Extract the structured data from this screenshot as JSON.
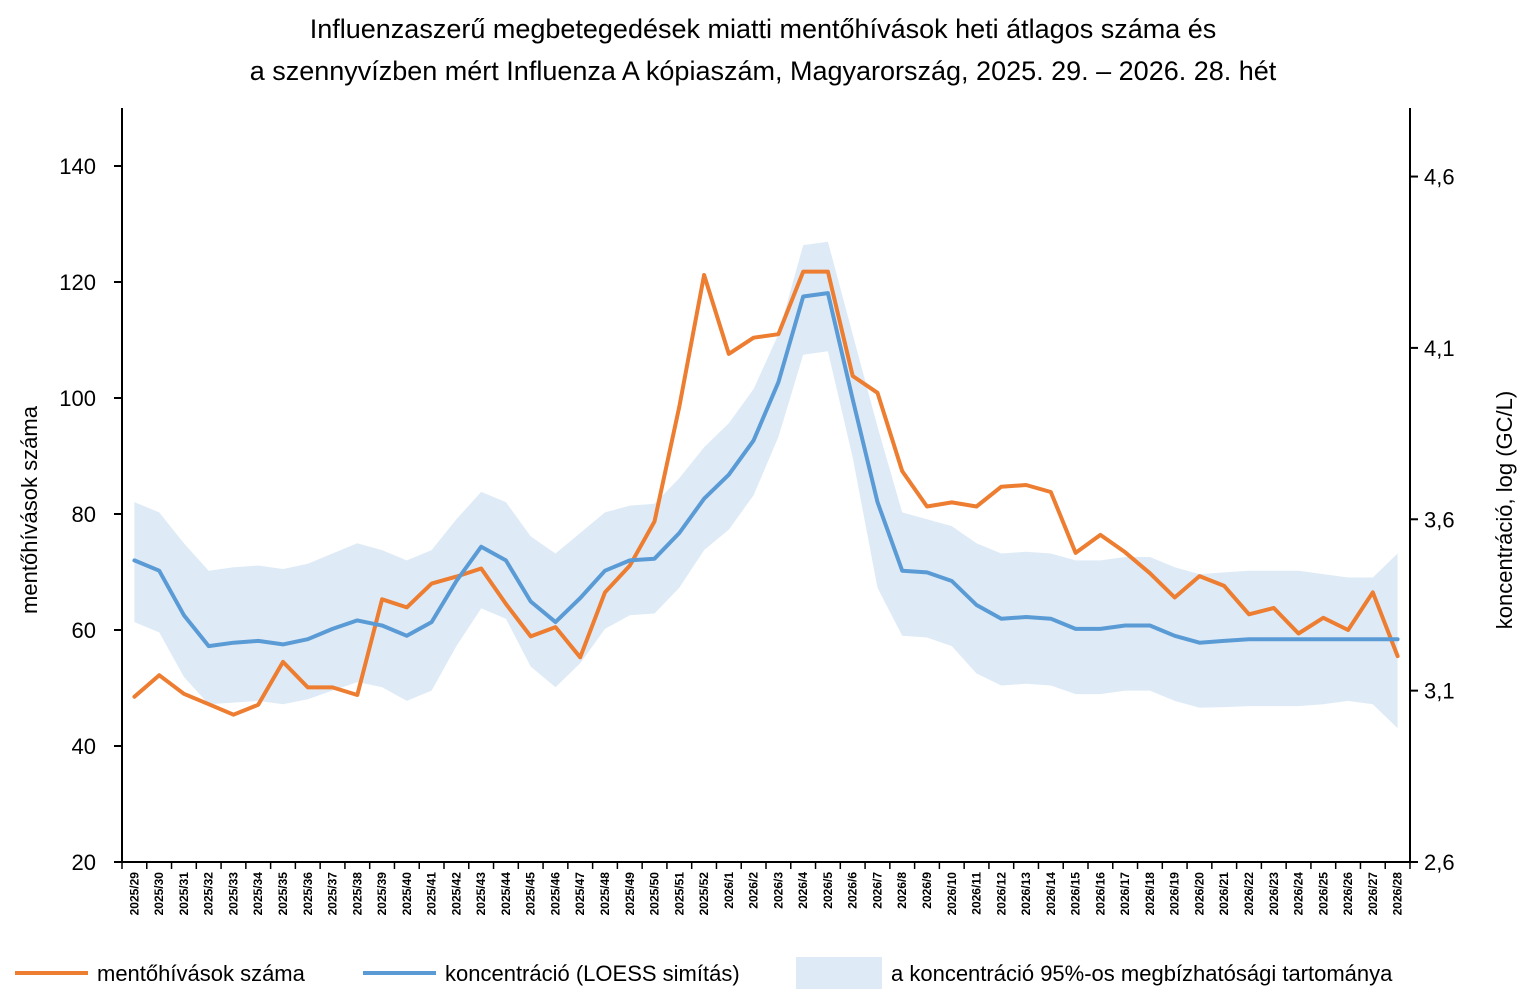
{
  "chart_data": {
    "type": "line",
    "title": [
      "Influenzaszerű megbetegedések miatti mentőhívások heti átlagos száma és",
      "a szennyvízben mért Influenza A kópiaszám, Magyarország, 2025. 29. – 2026. 28. hét"
    ],
    "ylabel_left": "mentőhívások száma",
    "ylabel_right": "koncentráció, log (GC/L)",
    "ylim_left": [
      20,
      150
    ],
    "ylim_right": [
      2.6,
      4.8
    ],
    "yticks_left": [
      20,
      40,
      60,
      80,
      100,
      120,
      140
    ],
    "yticks_right": [
      "2,6",
      "3,1",
      "3,6",
      "4,1",
      "4,6"
    ],
    "yticks_right_values": [
      2.6,
      3.1,
      3.6,
      4.1,
      4.6
    ],
    "categories": [
      "2025/29",
      "2025/30",
      "2025/31",
      "2025/32",
      "2025/33",
      "2025/34",
      "2025/35",
      "2025/36",
      "2025/37",
      "2025/38",
      "2025/39",
      "2025/40",
      "2025/41",
      "2025/42",
      "2025/43",
      "2025/44",
      "2025/45",
      "2025/46",
      "2025/47",
      "2025/48",
      "2025/49",
      "2025/50",
      "2025/51",
      "2025/52",
      "2026/1",
      "2026/2",
      "2026/3",
      "2026/4",
      "2026/5",
      "2026/6",
      "2026/7",
      "2026/8",
      "2026/9",
      "2026/10",
      "2026/11",
      "2026/12",
      "2026/13",
      "2026/14",
      "2026/15",
      "2026/16",
      "2026/17",
      "2026/18",
      "2026/19",
      "2026/20",
      "2026/21",
      "2026/22",
      "2026/23",
      "2026/24",
      "2026/25",
      "2026/26",
      "2026/27",
      "2026/28"
    ],
    "series": [
      {
        "name": "mentőhívások száma",
        "axis": "left",
        "color": "#ED7D31",
        "values": [
          48.5,
          52.2,
          49.0,
          47.2,
          45.4,
          47.1,
          54.5,
          50.1,
          50.1,
          48.8,
          65.3,
          63.9,
          68.0,
          69.2,
          70.6,
          64.5,
          58.9,
          60.5,
          55.3,
          66.5,
          71.1,
          78.7,
          98.5,
          121.2,
          107.6,
          110.4,
          111.0,
          121.8,
          121.8,
          103.8,
          100.9,
          87.4,
          81.3,
          82.0,
          81.3,
          84.7,
          85.0,
          83.8,
          73.3,
          76.4,
          73.4,
          69.8,
          65.6,
          69.3,
          67.6,
          62.7,
          63.8,
          59.4,
          62.1,
          60.0,
          66.5,
          55.5
        ]
      },
      {
        "name": "koncentráció (LOESS simítás)",
        "axis": "right",
        "color": "#5B9BD5",
        "values": [
          3.48,
          3.45,
          3.32,
          3.23,
          3.24,
          3.245,
          3.235,
          3.25,
          3.28,
          3.305,
          3.29,
          3.26,
          3.3,
          3.42,
          3.52,
          3.48,
          3.36,
          3.3,
          3.37,
          3.45,
          3.48,
          3.485,
          3.56,
          3.66,
          3.73,
          3.83,
          4.0,
          4.25,
          4.26,
          3.95,
          3.65,
          3.45,
          3.445,
          3.42,
          3.35,
          3.31,
          3.315,
          3.31,
          3.28,
          3.28,
          3.29,
          3.29,
          3.26,
          3.24,
          3.245,
          3.25,
          3.25,
          3.25,
          3.25,
          3.25,
          3.25,
          3.25
        ]
      }
    ],
    "confidence_band": {
      "name": "a koncentráció 95%-os megbízhatósági tartománya",
      "color": "#DEEBF7",
      "upper": [
        3.65,
        3.62,
        3.53,
        3.45,
        3.46,
        3.465,
        3.455,
        3.47,
        3.5,
        3.53,
        3.51,
        3.48,
        3.51,
        3.6,
        3.68,
        3.65,
        3.55,
        3.5,
        3.56,
        3.62,
        3.64,
        3.645,
        3.72,
        3.81,
        3.88,
        3.98,
        4.14,
        4.4,
        4.41,
        4.14,
        3.87,
        3.62,
        3.6,
        3.58,
        3.53,
        3.5,
        3.505,
        3.5,
        3.48,
        3.48,
        3.49,
        3.49,
        3.46,
        3.44,
        3.445,
        3.45,
        3.45,
        3.45,
        3.44,
        3.43,
        3.43,
        3.5
      ],
      "lower": [
        3.3,
        3.27,
        3.14,
        3.06,
        3.065,
        3.07,
        3.06,
        3.075,
        3.1,
        3.125,
        3.11,
        3.07,
        3.1,
        3.23,
        3.34,
        3.31,
        3.17,
        3.11,
        3.18,
        3.28,
        3.32,
        3.325,
        3.4,
        3.51,
        3.57,
        3.67,
        3.84,
        4.08,
        4.09,
        3.78,
        3.4,
        3.26,
        3.255,
        3.23,
        3.15,
        3.115,
        3.12,
        3.115,
        3.09,
        3.09,
        3.1,
        3.1,
        3.07,
        3.05,
        3.052,
        3.055,
        3.055,
        3.055,
        3.06,
        3.07,
        3.06,
        2.99
      ]
    },
    "legend_position": "bottom"
  }
}
